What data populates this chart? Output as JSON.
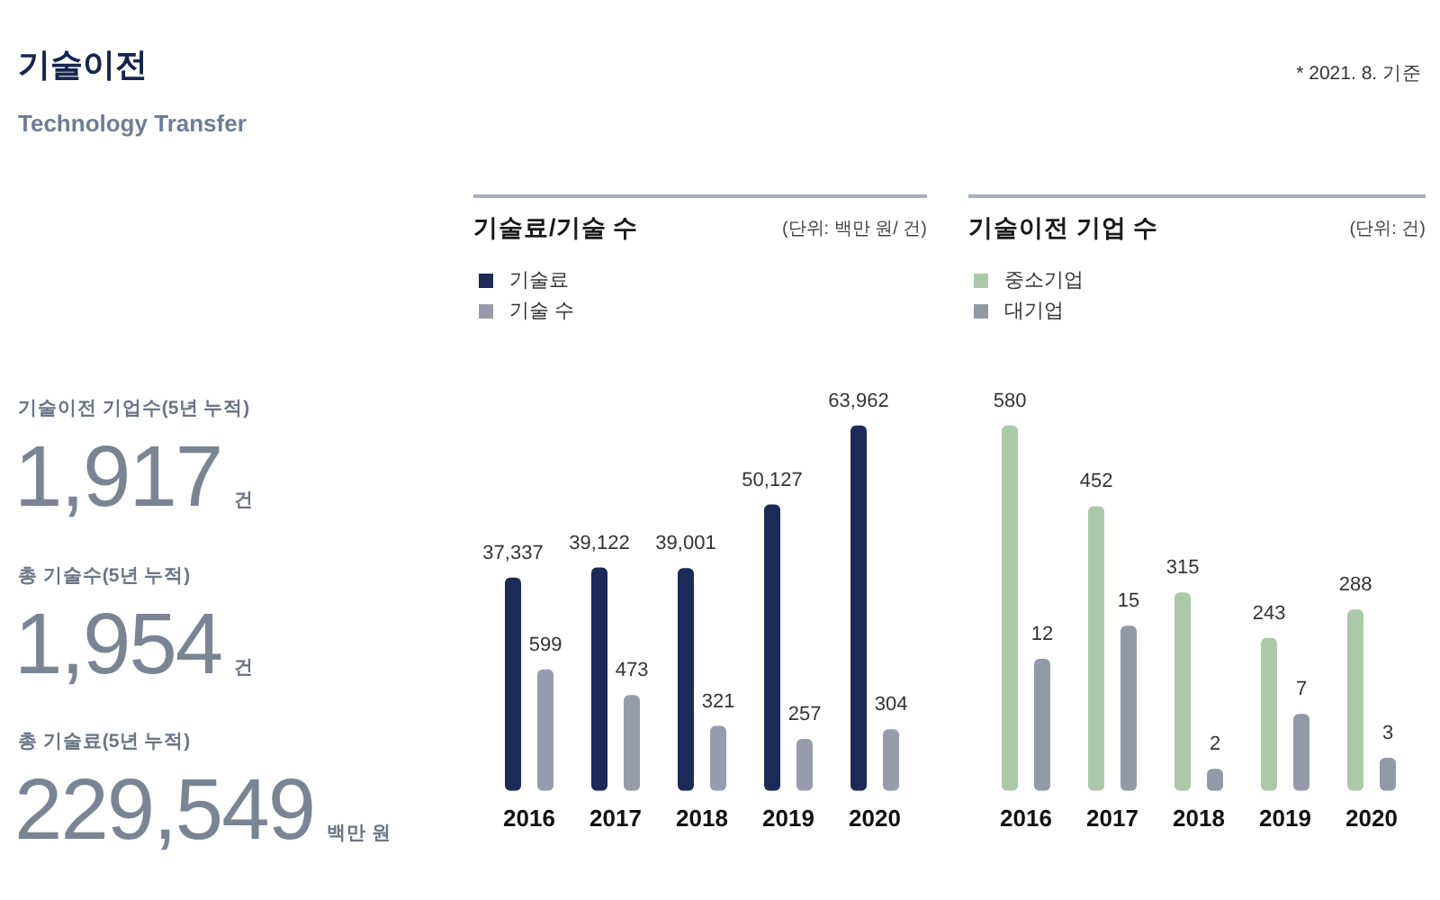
{
  "chart_data": [
    {
      "type": "other",
      "title": "기술이전",
      "subtitle": "Technology Transfer",
      "annotations": [
        "* 2021. 8. 기준",
        "기술이전 기업수(5년 누적)",
        "1,917",
        "건",
        "총 기술수(5년 누적)",
        "1,954",
        "건",
        "총 기술료(5년 누적)",
        "229,549",
        "백만 원"
      ]
    },
    {
      "type": "bar",
      "title": "기술료/기술 수",
      "annotations": [
        "(단위: 백만 원/ 건)"
      ],
      "categories": [
        "2016",
        "2017",
        "2018",
        "2019",
        "2020"
      ],
      "series": [
        {
          "name": "기술료",
          "color": "#1b2a57",
          "values": [
            37337,
            39122,
            39001,
            50127,
            63962
          ],
          "value_labels": [
            "37,337",
            "39,122",
            "39,001",
            "50,127",
            "63,962"
          ]
        },
        {
          "name": "기술 수",
          "color": "#969cab",
          "values": [
            599,
            473,
            321,
            257,
            304
          ],
          "value_labels": [
            "599",
            "473",
            "321",
            "257",
            "304"
          ],
          "axis": "y2"
        }
      ],
      "legend": "top left",
      "tick_labels": "x"
    },
    {
      "type": "bar",
      "title": "기술이전 기업 수",
      "annotations": [
        "(단위: 건)"
      ],
      "categories": [
        "2016",
        "2017",
        "2018",
        "2019",
        "2020"
      ],
      "series": [
        {
          "name": "중소기업",
          "color": "#abc9a9",
          "values": [
            580,
            452,
            315,
            243,
            288
          ]
        },
        {
          "name": "대기업",
          "color": "#9299a7",
          "values": [
            12,
            15,
            2,
            7,
            3
          ],
          "axis": "y2"
        }
      ],
      "data_labels": true,
      "legend": "top left",
      "tick_labels": "x"
    }
  ]
}
